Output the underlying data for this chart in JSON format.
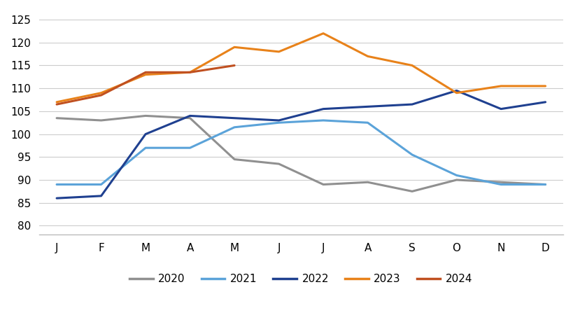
{
  "months": [
    "J",
    "F",
    "M",
    "A",
    "M",
    "J",
    "J",
    "A",
    "S",
    "O",
    "N",
    "D"
  ],
  "series": {
    "2020": [
      103.5,
      103.0,
      104.0,
      103.5,
      94.5,
      93.5,
      89.0,
      89.5,
      87.5,
      90.0,
      89.5,
      89.0
    ],
    "2021": [
      89.0,
      89.0,
      97.0,
      97.0,
      101.5,
      102.5,
      103.0,
      102.5,
      95.5,
      91.0,
      89.0,
      89.0
    ],
    "2022": [
      86.0,
      86.5,
      100.0,
      104.0,
      103.5,
      103.0,
      105.5,
      106.0,
      106.5,
      109.5,
      105.5,
      107.0
    ],
    "2023": [
      107.0,
      109.0,
      113.0,
      113.5,
      119.0,
      118.0,
      122.0,
      117.0,
      115.0,
      109.0,
      110.5,
      110.5
    ],
    "2024": [
      106.5,
      108.5,
      113.5,
      113.5,
      115.0
    ]
  },
  "colors": {
    "2020": "#909090",
    "2021": "#5BA3D9",
    "2022": "#1F4090",
    "2023": "#E8821A",
    "2024": "#C05020"
  },
  "ylim": [
    78,
    127
  ],
  "yticks": [
    80,
    85,
    90,
    95,
    100,
    105,
    110,
    115,
    120,
    125
  ],
  "background_color": "#ffffff",
  "grid_color": "#cccccc",
  "linewidth": 2.2
}
